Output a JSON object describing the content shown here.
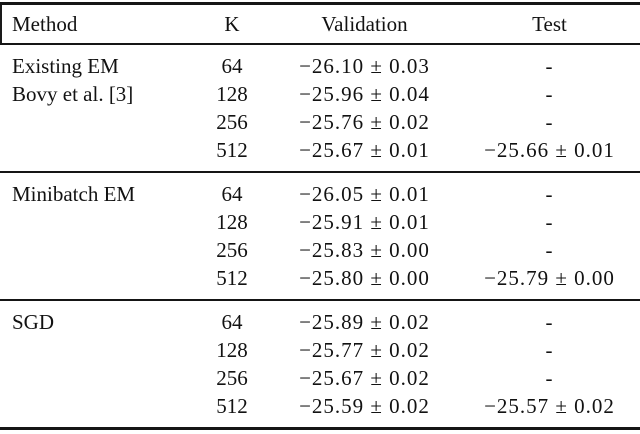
{
  "table": {
    "headers": [
      "Method",
      "K",
      "Validation",
      "Test"
    ],
    "sections": [
      {
        "rows": [
          {
            "method": "Existing EM",
            "k": "64",
            "validation": "−26.10 ± 0.03",
            "test": "-"
          },
          {
            "method": "Bovy et al. [3]",
            "k": "128",
            "validation": "−25.96 ± 0.04",
            "test": "-"
          },
          {
            "method": "",
            "k": "256",
            "validation": "−25.76 ± 0.02",
            "test": "-"
          },
          {
            "method": "",
            "k": "512",
            "validation": "−25.67 ± 0.01",
            "test": "−25.66 ± 0.01"
          }
        ]
      },
      {
        "rows": [
          {
            "method": "Minibatch EM",
            "k": "64",
            "validation": "−26.05 ± 0.01",
            "test": "-"
          },
          {
            "method": "",
            "k": "128",
            "validation": "−25.91 ± 0.01",
            "test": "-"
          },
          {
            "method": "",
            "k": "256",
            "validation": "−25.83 ± 0.00",
            "test": "-"
          },
          {
            "method": "",
            "k": "512",
            "validation": "−25.80 ± 0.00",
            "test": "−25.79 ± 0.00"
          }
        ]
      },
      {
        "rows": [
          {
            "method": "SGD",
            "k": "64",
            "validation": "−25.89 ± 0.02",
            "test": "-"
          },
          {
            "method": "",
            "k": "128",
            "validation": "−25.77 ± 0.02",
            "test": "-"
          },
          {
            "method": "",
            "k": "256",
            "validation": "−25.67 ± 0.02",
            "test": "-"
          },
          {
            "method": "",
            "k": "512",
            "validation": "−25.59 ± 0.02",
            "test": "−25.57 ± 0.02"
          }
        ]
      }
    ]
  },
  "chart_data": {
    "type": "table",
    "columns": [
      "Method",
      "K",
      "Validation",
      "Test"
    ],
    "rows": [
      [
        "Existing EM Bovy et al. [3]",
        64,
        "−26.10 ± 0.03",
        null
      ],
      [
        "Existing EM Bovy et al. [3]",
        128,
        "−25.96 ± 0.04",
        null
      ],
      [
        "Existing EM Bovy et al. [3]",
        256,
        "−25.76 ± 0.02",
        null
      ],
      [
        "Existing EM Bovy et al. [3]",
        512,
        "−25.67 ± 0.01",
        "−25.66 ± 0.01"
      ],
      [
        "Minibatch EM",
        64,
        "−26.05 ± 0.01",
        null
      ],
      [
        "Minibatch EM",
        128,
        "−25.91 ± 0.01",
        null
      ],
      [
        "Minibatch EM",
        256,
        "−25.83 ± 0.00",
        null
      ],
      [
        "Minibatch EM",
        512,
        "−25.80 ± 0.00",
        "−25.79 ± 0.00"
      ],
      [
        "SGD",
        64,
        "−25.89 ± 0.02",
        null
      ],
      [
        "SGD",
        128,
        "−25.77 ± 0.02",
        null
      ],
      [
        "SGD",
        256,
        "−25.67 ± 0.02",
        null
      ],
      [
        "SGD",
        512,
        "−25.59 ± 0.02",
        "−25.57 ± 0.02"
      ]
    ]
  },
  "colors": {
    "text": "#121212",
    "rule": "#151515",
    "background": "#ffffff"
  }
}
